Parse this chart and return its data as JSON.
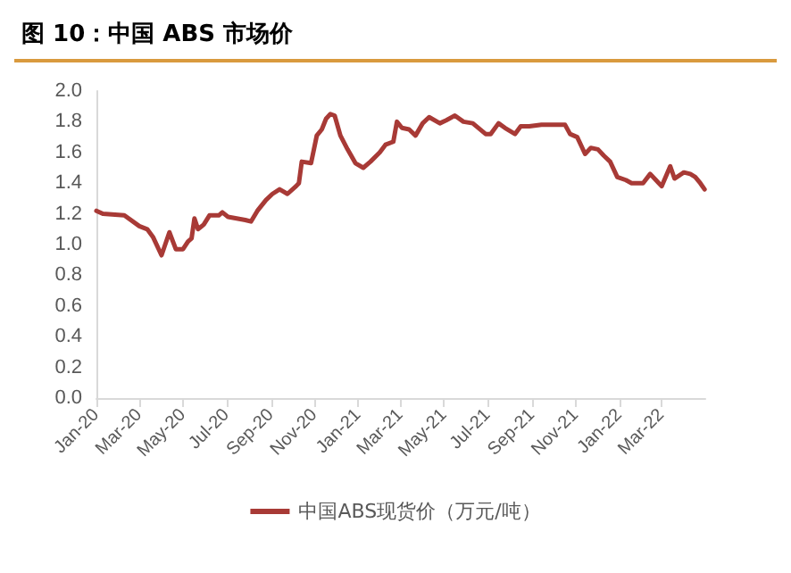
{
  "chart_data": {
    "type": "line",
    "title": "图 10：中国 ABS 市场价",
    "x": [
      "2020-01-01",
      "2020-01-10",
      "2020-02-09",
      "2020-03-01",
      "2020-03-12",
      "2020-03-20",
      "2020-04-01",
      "2020-04-12",
      "2020-04-21",
      "2020-05-01",
      "2020-05-08",
      "2020-05-13",
      "2020-05-17",
      "2020-05-22",
      "2020-05-30",
      "2020-06-07",
      "2020-06-20",
      "2020-06-25",
      "2020-07-03",
      "2020-07-27",
      "2020-08-04",
      "2020-08-13",
      "2020-08-25",
      "2020-09-03",
      "2020-09-13",
      "2020-09-24",
      "2020-10-06",
      "2020-10-10",
      "2020-10-14",
      "2020-10-27",
      "2020-11-04",
      "2020-11-11",
      "2020-11-17",
      "2020-11-23",
      "2020-11-29",
      "2020-12-07",
      "2020-12-17",
      "2020-12-28",
      "2021-01-08",
      "2021-01-18",
      "2021-01-31",
      "2021-02-08",
      "2021-02-19",
      "2021-02-24",
      "2021-03-03",
      "2021-03-13",
      "2021-03-22",
      "2021-04-01",
      "2021-04-10",
      "2021-04-25",
      "2021-05-04",
      "2021-05-16",
      "2021-05-28",
      "2021-06-10",
      "2021-06-28",
      "2021-07-05",
      "2021-07-16",
      "2021-07-25",
      "2021-08-08",
      "2021-08-16",
      "2021-08-28",
      "2021-09-14",
      "2021-10-01",
      "2021-10-17",
      "2021-10-24",
      "2021-11-03",
      "2021-11-14",
      "2021-11-22",
      "2021-12-02",
      "2021-12-10",
      "2021-12-19",
      "2021-12-29",
      "2022-01-10",
      "2022-01-18",
      "2022-02-03",
      "2022-02-13",
      "2022-02-21",
      "2022-03-01",
      "2022-03-13",
      "2022-03-19",
      "2022-04-01",
      "2022-04-10",
      "2022-04-17",
      "2022-04-24",
      "2022-04-30"
    ],
    "series": [
      {
        "name": "中国ABS现货价（万元/吨）",
        "color": "#a83a36",
        "values": [
          1.22,
          1.2,
          1.19,
          1.12,
          1.1,
          1.05,
          0.93,
          1.08,
          0.97,
          0.97,
          1.02,
          1.04,
          1.17,
          1.1,
          1.13,
          1.19,
          1.19,
          1.21,
          1.18,
          1.16,
          1.15,
          1.22,
          1.29,
          1.33,
          1.36,
          1.33,
          1.38,
          1.4,
          1.54,
          1.53,
          1.71,
          1.75,
          1.82,
          1.85,
          1.84,
          1.71,
          1.62,
          1.53,
          1.5,
          1.54,
          1.6,
          1.65,
          1.67,
          1.8,
          1.76,
          1.75,
          1.71,
          1.79,
          1.83,
          1.79,
          1.81,
          1.84,
          1.8,
          1.79,
          1.72,
          1.72,
          1.79,
          1.76,
          1.72,
          1.77,
          1.77,
          1.78,
          1.78,
          1.78,
          1.72,
          1.7,
          1.59,
          1.63,
          1.62,
          1.58,
          1.54,
          1.44,
          1.42,
          1.4,
          1.4,
          1.46,
          1.42,
          1.38,
          1.51,
          1.43,
          1.47,
          1.46,
          1.44,
          1.4,
          1.36
        ]
      }
    ],
    "xlim": [
      "2020-01-01",
      "2022-05-01"
    ],
    "xticks": [
      {
        "value": "2020-01-01",
        "label": "Jan-20"
      },
      {
        "value": "2020-03-01",
        "label": "Mar-20"
      },
      {
        "value": "2020-05-01",
        "label": "May-20"
      },
      {
        "value": "2020-07-01",
        "label": "Jul-20"
      },
      {
        "value": "2020-09-01",
        "label": "Sep-20"
      },
      {
        "value": "2020-11-01",
        "label": "Nov-20"
      },
      {
        "value": "2021-01-01",
        "label": "Jan-21"
      },
      {
        "value": "2021-03-01",
        "label": "Mar-21"
      },
      {
        "value": "2021-05-01",
        "label": "May-21"
      },
      {
        "value": "2021-07-01",
        "label": "Jul-21"
      },
      {
        "value": "2021-09-01",
        "label": "Sep-21"
      },
      {
        "value": "2021-11-01",
        "label": "Nov-21"
      },
      {
        "value": "2022-01-01",
        "label": "Jan-22"
      },
      {
        "value": "2022-03-01",
        "label": "Mar-22"
      }
    ],
    "ylim": [
      0,
      2.0
    ],
    "yticks": [
      {
        "value": 0,
        "label": "0.0"
      },
      {
        "value": 0.2,
        "label": "0.2"
      },
      {
        "value": 0.4,
        "label": "0.4"
      },
      {
        "value": 0.6,
        "label": "0.6"
      },
      {
        "value": 0.8,
        "label": "0.8"
      },
      {
        "value": 1.0,
        "label": "1.0"
      },
      {
        "value": 1.2,
        "label": "1.2"
      },
      {
        "value": 1.4,
        "label": "1.4"
      },
      {
        "value": 1.6,
        "label": "1.6"
      },
      {
        "value": 1.8,
        "label": "1.8"
      },
      {
        "value": 2.0,
        "label": "2.0"
      }
    ],
    "grid": false,
    "legend": "bottom",
    "marker": "none",
    "line_style": "solid"
  }
}
